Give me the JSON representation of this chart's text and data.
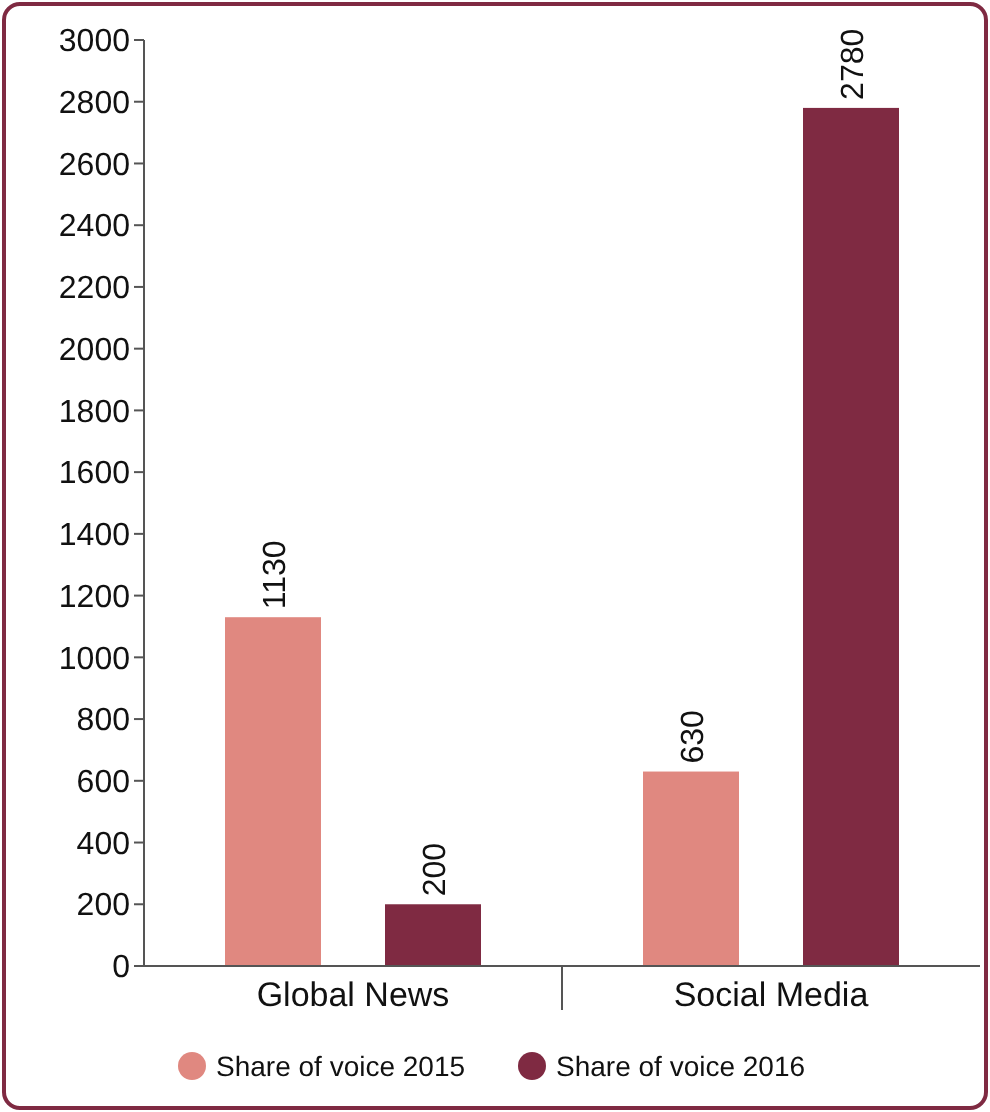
{
  "chart_data": {
    "type": "bar",
    "categories": [
      "Global News",
      "Social Media"
    ],
    "series": [
      {
        "name": "Share of voice 2015",
        "color": "#e08880",
        "values": [
          1130,
          630
        ]
      },
      {
        "name": "Share of voice 2016",
        "color": "#7f2a42",
        "values": [
          200,
          2780
        ]
      }
    ],
    "ylim": [
      0,
      3000
    ],
    "yticks": [
      0,
      200,
      400,
      600,
      800,
      1000,
      1200,
      1400,
      1600,
      1800,
      2000,
      2200,
      2400,
      2600,
      2800,
      3000
    ],
    "data_labels": true,
    "legend": "bottom",
    "grid": false
  }
}
